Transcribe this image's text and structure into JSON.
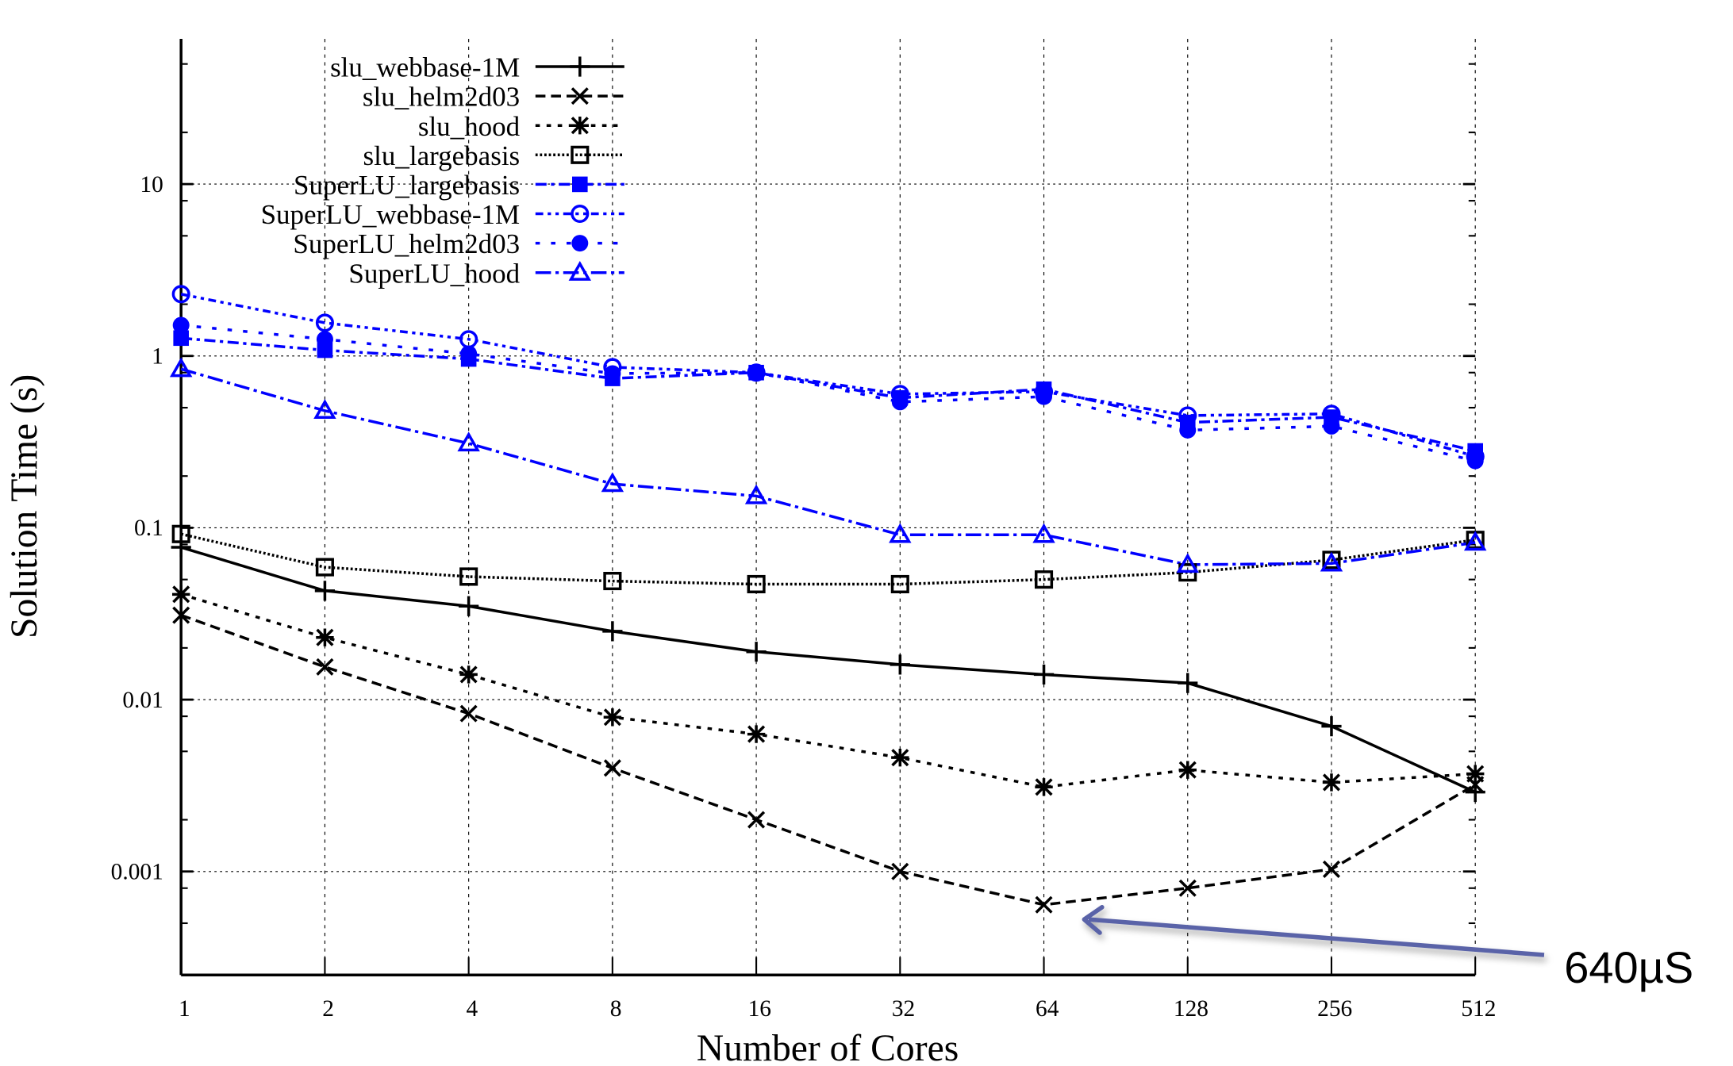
{
  "chart_data": {
    "type": "line",
    "title": "",
    "xlabel": "Number of Cores",
    "ylabel": "Solution Time (s)",
    "x": [
      1,
      2,
      4,
      8,
      16,
      32,
      64,
      128,
      256,
      512
    ],
    "x_tick_labels": [
      "1",
      "2",
      "4",
      "8",
      "16",
      "32",
      "64",
      "128",
      "256",
      "512"
    ],
    "x_scale": "log2",
    "y_scale": "log10",
    "ylim": [
      0.00025,
      70
    ],
    "y_ticks": [
      0.001,
      0.01,
      0.1,
      1,
      10
    ],
    "y_tick_labels": [
      "0.001",
      "0.01",
      "0.1",
      "1",
      "10"
    ],
    "grid": true,
    "legend_position": "top-center",
    "series": [
      {
        "name": "slu_webbase-1M",
        "color": "#000000",
        "dash": "solid",
        "marker": "plus",
        "values": [
          0.077,
          0.043,
          0.035,
          0.025,
          0.019,
          0.016,
          0.014,
          0.0125,
          0.007,
          0.0029
        ]
      },
      {
        "name": "slu_helm2d03",
        "color": "#000000",
        "dash": "dashed",
        "marker": "cross",
        "values": [
          0.031,
          0.0155,
          0.0083,
          0.004,
          0.002,
          0.001,
          0.00064,
          0.0008,
          0.00103,
          0.0032
        ]
      },
      {
        "name": "slu_hood",
        "color": "#000000",
        "dash": "dotted",
        "marker": "star",
        "values": [
          0.041,
          0.023,
          0.014,
          0.0079,
          0.0063,
          0.0046,
          0.0031,
          0.0039,
          0.0033,
          0.0037
        ]
      },
      {
        "name": "slu_largebasis",
        "color": "#000000",
        "dash": "fine-dotted",
        "marker": "open-square",
        "values": [
          0.092,
          0.059,
          0.052,
          0.049,
          0.047,
          0.047,
          0.05,
          0.055,
          0.065,
          0.085
        ]
      },
      {
        "name": "SuperLU_largebasis",
        "color": "#0000ff",
        "dash": "dash-dot",
        "marker": "filled-square",
        "values": [
          1.27,
          1.08,
          0.96,
          0.74,
          0.8,
          0.57,
          0.64,
          0.41,
          0.44,
          0.28
        ]
      },
      {
        "name": "SuperLU_webbase-1M",
        "color": "#0000ff",
        "dash": "dash-dot-dot",
        "marker": "open-circle",
        "values": [
          2.29,
          1.56,
          1.25,
          0.86,
          0.8,
          0.6,
          0.62,
          0.45,
          0.46,
          0.26
        ]
      },
      {
        "name": "SuperLU_helm2d03",
        "color": "#0000ff",
        "dash": "sparse-dot",
        "marker": "filled-circle",
        "values": [
          1.51,
          1.25,
          1.03,
          0.79,
          0.8,
          0.54,
          0.58,
          0.37,
          0.39,
          0.245
        ]
      },
      {
        "name": "SuperLU_hood",
        "color": "#0000ff",
        "dash": "long-dash-dot",
        "marker": "open-triangle",
        "values": [
          0.84,
          0.48,
          0.31,
          0.18,
          0.153,
          0.091,
          0.091,
          0.061,
          0.062,
          0.082
        ]
      }
    ],
    "annotations": [
      {
        "text": "640µS",
        "points_to": {
          "x": 64,
          "y": 0.00064,
          "series": "slu_helm2d03"
        },
        "arrow_color": "#5a64a8"
      }
    ]
  }
}
